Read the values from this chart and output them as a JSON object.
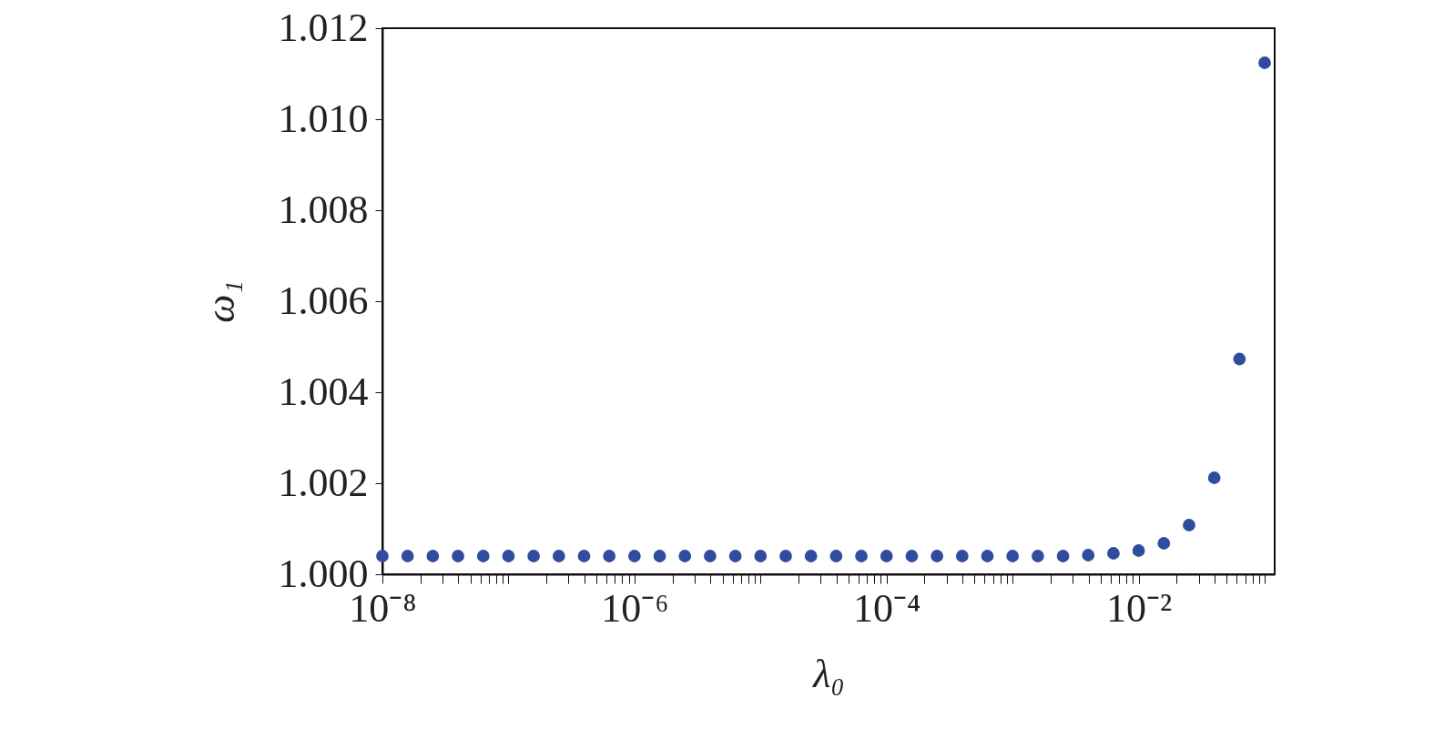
{
  "chart_data": {
    "type": "scatter",
    "xlabel": "λ₀",
    "ylabel": "ω₁",
    "log": "x",
    "marker": "circle",
    "grid": false,
    "xlim": [
      1e-08,
      0.12
    ],
    "ylim": [
      1.0,
      1.012
    ],
    "yticks": [
      {
        "value": 1.0,
        "label": "1.000"
      },
      1.002,
      1.004,
      1.006,
      1.008,
      {
        "value": 1.01,
        "label": "1.010"
      },
      1.012
    ],
    "xticks": [
      {
        "value": 1e-08,
        "label": "10⁻⁸"
      },
      {
        "value": 2e-08,
        "label": null
      },
      {
        "value": 3e-08,
        "label": null
      },
      {
        "value": 4e-08,
        "label": null
      },
      {
        "value": 5e-08,
        "label": null
      },
      {
        "value": 6e-08,
        "label": null
      },
      {
        "value": 7e-08,
        "label": null
      },
      {
        "value": 8e-08,
        "label": null
      },
      {
        "value": 9e-08,
        "label": null
      },
      {
        "value": 1e-07,
        "label": null
      },
      {
        "value": 2e-07,
        "label": null
      },
      {
        "value": 3e-07,
        "label": null
      },
      {
        "value": 4e-07,
        "label": null
      },
      {
        "value": 5e-07,
        "label": null
      },
      {
        "value": 6e-07,
        "label": null
      },
      {
        "value": 7e-07,
        "label": null
      },
      {
        "value": 8e-07,
        "label": null
      },
      {
        "value": 9e-07,
        "label": null
      },
      {
        "value": 1e-06,
        "label": "10⁻⁶"
      },
      {
        "value": 2e-06,
        "label": null
      },
      {
        "value": 3e-06,
        "label": null
      },
      {
        "value": 4e-06,
        "label": null
      },
      {
        "value": 5e-06,
        "label": null
      },
      {
        "value": 6e-06,
        "label": null
      },
      {
        "value": 7e-06,
        "label": null
      },
      {
        "value": 8e-06,
        "label": null
      },
      {
        "value": 9e-06,
        "label": null
      },
      {
        "value": 1e-05,
        "label": null
      },
      {
        "value": 2e-05,
        "label": null
      },
      {
        "value": 3e-05,
        "label": null
      },
      {
        "value": 4e-05,
        "label": null
      },
      {
        "value": 5e-05,
        "label": null
      },
      {
        "value": 6e-05,
        "label": null
      },
      {
        "value": 7e-05,
        "label": null
      },
      {
        "value": 8e-05,
        "label": null
      },
      {
        "value": 9e-05,
        "label": null
      },
      {
        "value": 0.0001,
        "label": "10⁻⁴"
      },
      {
        "value": 0.0002,
        "label": null
      },
      {
        "value": 0.0003,
        "label": null
      },
      {
        "value": 0.0004,
        "label": null
      },
      {
        "value": 0.0005,
        "label": null
      },
      {
        "value": 0.0006,
        "label": null
      },
      {
        "value": 0.0007,
        "label": null
      },
      {
        "value": 0.0008,
        "label": null
      },
      {
        "value": 0.0009,
        "label": null
      },
      {
        "value": 0.001,
        "label": null
      },
      {
        "value": 0.002,
        "label": null
      },
      {
        "value": 0.003,
        "label": null
      },
      {
        "value": 0.004,
        "label": null
      },
      {
        "value": 0.005,
        "label": null
      },
      {
        "value": 0.006,
        "label": null
      },
      {
        "value": 0.007,
        "label": null
      },
      {
        "value": 0.008,
        "label": null
      },
      {
        "value": 0.009,
        "label": null
      },
      {
        "value": 0.01,
        "label": "10⁻²"
      },
      {
        "value": 0.02,
        "label": null
      },
      {
        "value": 0.03,
        "label": null
      },
      {
        "value": 0.04,
        "label": null
      },
      {
        "value": 0.05,
        "label": null
      },
      {
        "value": 0.06,
        "label": null
      },
      {
        "value": 0.07,
        "label": null
      },
      {
        "value": 0.08,
        "label": null
      },
      {
        "value": 0.09,
        "label": null
      },
      {
        "value": 0.1,
        "label": null
      }
    ],
    "series": [
      {
        "color": "#2f4da0",
        "x": [
          1e-08,
          1.585e-08,
          2.512e-08,
          3.981e-08,
          6.31e-08,
          1e-07,
          1.585e-07,
          2.512e-07,
          3.981e-07,
          6.31e-07,
          1e-06,
          1.585e-06,
          2.512e-06,
          3.981e-06,
          6.31e-06,
          1e-05,
          1.585e-05,
          2.512e-05,
          3.981e-05,
          6.31e-05,
          0.0001,
          0.0001585,
          0.0002512,
          0.0003981,
          0.000631,
          0.001,
          0.001585,
          0.002512,
          0.003981,
          0.00631,
          0.01,
          0.01585,
          0.02512,
          0.03981,
          0.0631,
          0.1
        ],
        "values": [
          1.0004,
          1.0004,
          1.0004,
          1.0004,
          1.0004,
          1.0004,
          1.0004,
          1.0004,
          1.0004,
          1.0004,
          1.0004,
          1.0004,
          1.0004,
          1.0004,
          1.0004,
          1.0004,
          1.0004,
          1.0004,
          1.0004,
          1.0004,
          1.0004,
          1.0004,
          1.0004,
          1.0004,
          1.0004,
          1.0004,
          1.0004,
          1.0004,
          1.00042,
          1.00046,
          1.00052,
          1.00068,
          1.00108,
          1.00212,
          1.00473,
          1.01124
        ]
      }
    ]
  }
}
